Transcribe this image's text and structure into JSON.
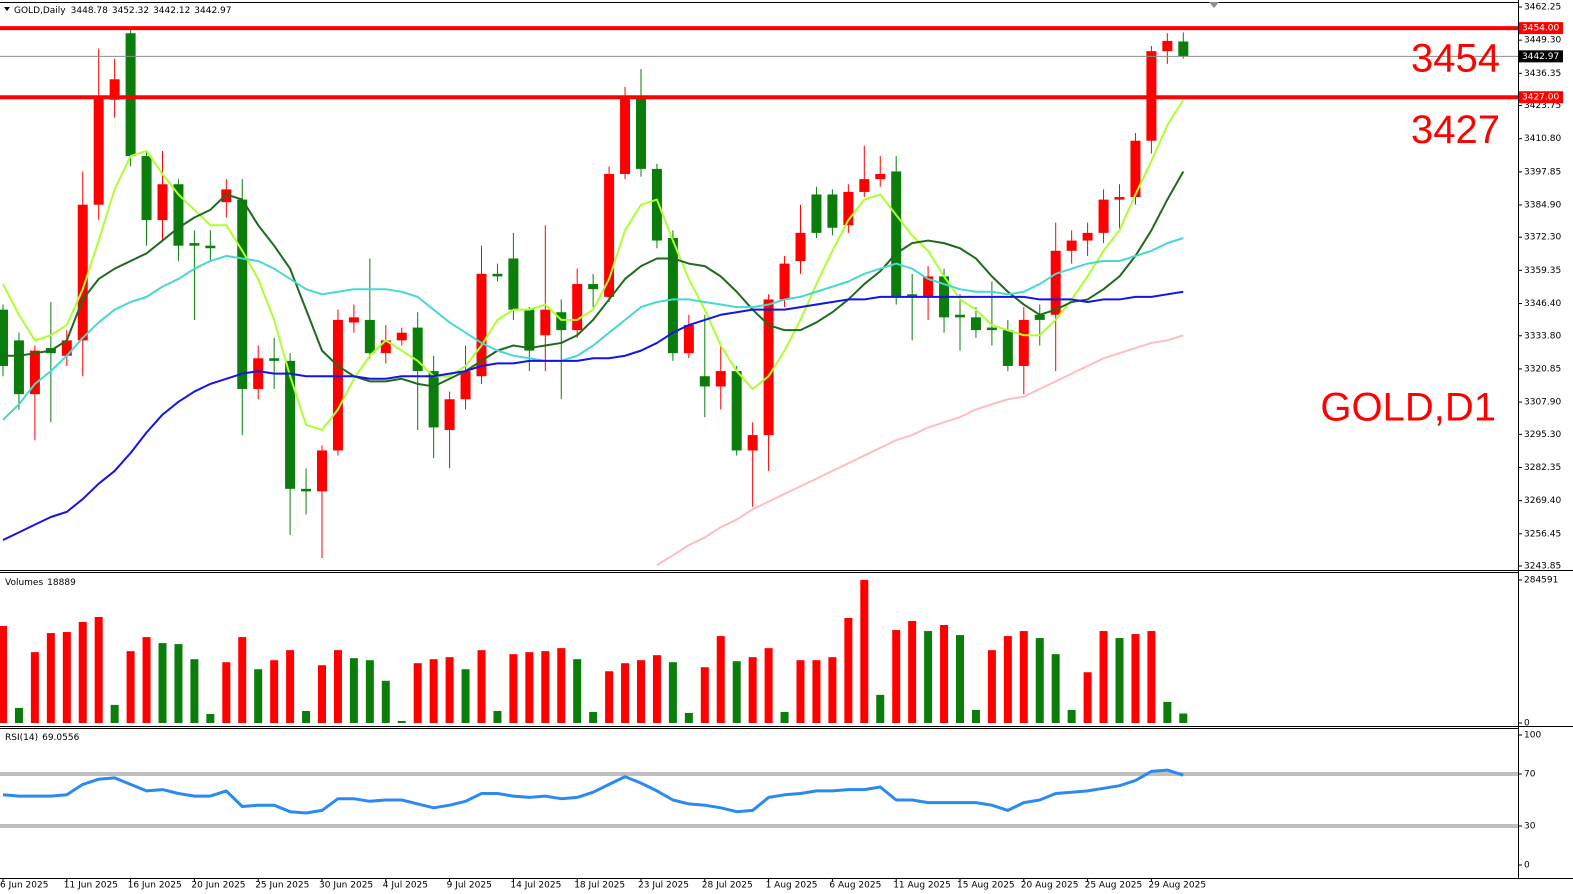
{
  "chart_data": [
    {
      "type": "candlestick",
      "title": "GOLD,Daily",
      "annotation": "GOLD,D1",
      "categories": [
        "6 Jun 2025",
        null,
        null,
        null,
        "11 Jun 2025",
        null,
        null,
        null,
        "16 Jun 2025",
        null,
        null,
        null,
        "20 Jun 2025",
        null,
        null,
        null,
        "25 Jun 2025",
        null,
        null,
        null,
        "30 Jun 2025",
        null,
        null,
        null,
        "4 Jul 2025",
        null,
        null,
        null,
        "9 Jul 2025",
        null,
        null,
        null,
        "14 Jul 2025",
        null,
        null,
        null,
        "18 Jul 2025",
        null,
        null,
        null,
        "23 Jul 2025",
        null,
        null,
        null,
        "28 Jul 2025",
        null,
        null,
        null,
        "1 Aug 2025",
        null,
        null,
        null,
        "6 Aug 2025",
        null,
        null,
        null,
        "11 Aug 2025",
        null,
        null,
        null,
        "15 Aug 2025",
        null,
        null,
        null,
        "20 Aug 2025",
        null,
        null,
        null,
        "25 Aug 2025",
        null,
        null,
        null,
        "29 Aug 2025",
        null,
        null
      ],
      "open": [
        3344,
        3332,
        3311,
        3329,
        3326,
        3332,
        3385,
        3426,
        3452,
        3404,
        3379,
        3393,
        3370,
        3369,
        3386,
        3387,
        3313,
        3325,
        3324,
        3274,
        3273,
        3289,
        3339,
        3340,
        3327,
        3332,
        3337,
        3320,
        3297,
        3309,
        3318,
        3358,
        3364,
        3344,
        3334,
        3343,
        3336,
        3354,
        3349,
        3397,
        3427,
        3399,
        3372,
        3327,
        3318,
        3314,
        3320,
        3289,
        3295,
        3348,
        3363,
        3389,
        3389,
        3377,
        3390,
        3395,
        3398,
        3350,
        3349,
        3357,
        3342,
        3341,
        3337,
        3336,
        3322,
        3342,
        3342,
        3367,
        3371,
        3374,
        3387,
        3388,
        3410,
        3445,
        3448.78
      ],
      "high": [
        3346,
        3335,
        3330,
        3347,
        3336,
        3398,
        3446,
        3442,
        3454,
        3406,
        3406,
        3395,
        3375,
        3375,
        3395,
        3395,
        3330,
        3333,
        3327,
        3282,
        3291,
        3344,
        3346,
        3364,
        3338,
        3337,
        3343,
        3326,
        3312,
        3330,
        3369,
        3362,
        3374,
        3345,
        3377,
        3348,
        3360,
        3358,
        3400,
        3431,
        3438,
        3401,
        3375,
        3342,
        3342,
        3330,
        3322,
        3300,
        3350,
        3365,
        3385,
        3392,
        3391,
        3393,
        3408,
        3404,
        3404,
        3358,
        3361,
        3360,
        3350,
        3345,
        3355,
        3340,
        3345,
        3346,
        3378,
        3375,
        3378,
        3391,
        3393,
        3413,
        3447,
        3452,
        3452.32
      ],
      "low": [
        3318,
        3305,
        3293,
        3300,
        3322,
        3318,
        3379,
        3419,
        3400,
        3369,
        3371,
        3363,
        3340,
        3363,
        3380,
        3295,
        3309,
        3313,
        3256,
        3264,
        3247,
        3287,
        3335,
        3325,
        3323,
        3330,
        3297,
        3286,
        3282,
        3305,
        3315,
        3355,
        3340,
        3320,
        3320,
        3309,
        3333,
        3345,
        3347,
        3395,
        3396,
        3368,
        3324,
        3325,
        3302,
        3305,
        3287,
        3267,
        3281,
        3345,
        3358,
        3372,
        3373,
        3374,
        3388,
        3392,
        3346,
        3332,
        3340,
        3335,
        3328,
        3333,
        3330,
        3320,
        3311,
        3330,
        3320,
        3362,
        3365,
        3370,
        3375,
        3385,
        3405,
        3440,
        3442.12
      ],
      "close": [
        3322,
        3311,
        3328,
        3327,
        3332,
        3385,
        3427,
        3434,
        3404,
        3379,
        3393,
        3369,
        3369,
        3368,
        3391,
        3313,
        3325,
        3324,
        3274,
        3273,
        3289,
        3340,
        3341,
        3327,
        3332,
        3335,
        3320,
        3298,
        3309,
        3320,
        3358,
        3357,
        3344,
        3328,
        3344,
        3336,
        3354,
        3352,
        3397,
        3427,
        3399,
        3371,
        3327,
        3338,
        3314,
        3320,
        3289,
        3295,
        3348,
        3362,
        3374,
        3374,
        3376,
        3390,
        3395,
        3397,
        3349,
        3349,
        3357,
        3341,
        3341,
        3336,
        3336,
        3322,
        3340,
        3340,
        3367,
        3371,
        3374,
        3387,
        3388,
        3410,
        3445,
        3449,
        3442.97
      ],
      "up_color": "#ff0000",
      "down_color": "#0a7d0a",
      "series": [
        {
          "color": "#adff2f",
          "values": [
            3354,
            3342,
            3332,
            3334,
            3338,
            3352,
            3371,
            3391,
            3404,
            3406,
            3397,
            3389,
            3383,
            3377,
            3377,
            3367,
            3356,
            3340,
            3318,
            3299,
            3297,
            3305,
            3317,
            3326,
            3332,
            3328,
            3324,
            3318,
            3318,
            3322,
            3330,
            3340,
            3344,
            3344,
            3346,
            3340,
            3340,
            3344,
            3356,
            3375,
            3385,
            3387,
            3371,
            3356,
            3344,
            3330,
            3320,
            3313,
            3318,
            3328,
            3340,
            3354,
            3367,
            3379,
            3387,
            3389,
            3381,
            3373,
            3367,
            3357,
            3348,
            3344,
            3338,
            3336,
            3334,
            3334,
            3340,
            3348,
            3357,
            3367,
            3375,
            3389,
            3402,
            3416,
            3426
          ]
        },
        {
          "color": "#1d6b1d",
          "values": [
            3326,
            3326,
            3327,
            3328,
            3332,
            3348,
            3356,
            3360,
            3363,
            3366,
            3371,
            3376,
            3380,
            3383,
            3389,
            3387,
            3377,
            3369,
            3360,
            3344,
            3328,
            3322,
            3318,
            3316,
            3316,
            3317,
            3315,
            3314,
            3317,
            3320,
            3324,
            3328,
            3330,
            3329,
            3330,
            3331,
            3334,
            3340,
            3348,
            3356,
            3361,
            3364,
            3364,
            3362,
            3361,
            3357,
            3351,
            3344,
            3338,
            3336,
            3336,
            3339,
            3343,
            3348,
            3354,
            3359,
            3366,
            3370,
            3371,
            3370,
            3368,
            3364,
            3357,
            3351,
            3346,
            3342,
            3344,
            3347,
            3348,
            3352,
            3357,
            3365,
            3375,
            3387,
            3398
          ]
        },
        {
          "color": "#48d8d0",
          "values": [
            3301,
            3307,
            3315,
            3320,
            3326,
            3333,
            3339,
            3344,
            3347,
            3349,
            3353,
            3356,
            3360,
            3363,
            3365,
            3364,
            3363,
            3360,
            3356,
            3352,
            3350,
            3351,
            3352,
            3352,
            3352,
            3351,
            3349,
            3344,
            3339,
            3335,
            3331,
            3328,
            3326,
            3325,
            3324,
            3324,
            3326,
            3330,
            3335,
            3340,
            3345,
            3347,
            3348,
            3348,
            3347,
            3346,
            3345,
            3345,
            3346,
            3348,
            3349,
            3351,
            3353,
            3355,
            3358,
            3360,
            3362,
            3360,
            3356,
            3354,
            3352,
            3351,
            3351,
            3350,
            3351,
            3354,
            3358,
            3360,
            3362,
            3363,
            3363,
            3365,
            3367,
            3370,
            3372
          ]
        },
        {
          "color": "#1414e6",
          "values": [
            3254,
            3257,
            3260,
            3263,
            3265,
            3270,
            3276,
            3281,
            3288,
            3296,
            3303,
            3308,
            3312,
            3315,
            3317,
            3319,
            3320,
            3319,
            3319,
            3318,
            3318,
            3318,
            3318,
            3317,
            3317,
            3318,
            3318,
            3318,
            3319,
            3320,
            3322,
            3323,
            3323,
            3324,
            3324,
            3324,
            3324,
            3325,
            3325,
            3326,
            3328,
            3331,
            3335,
            3338,
            3340,
            3342,
            3343,
            3344,
            3344,
            3344,
            3345,
            3346,
            3347,
            3348,
            3348,
            3349,
            3349,
            3349,
            3349,
            3349,
            3349,
            3349,
            3349,
            3349,
            3349,
            3348,
            3348,
            3348,
            3347,
            3348,
            3348,
            3349,
            3349,
            3350,
            3351
          ]
        },
        {
          "color": "#ffbcc4",
          "values": [
            null,
            null,
            null,
            null,
            null,
            null,
            null,
            null,
            null,
            null,
            null,
            null,
            null,
            null,
            null,
            null,
            null,
            null,
            null,
            null,
            null,
            null,
            null,
            null,
            null,
            null,
            null,
            null,
            null,
            null,
            null,
            null,
            null,
            null,
            null,
            null,
            null,
            null,
            null,
            null,
            null,
            3244.2,
            3248,
            3252,
            3255,
            3259,
            3262,
            3266,
            3269,
            3272,
            3275,
            3278,
            3281,
            3284,
            3287,
            3290,
            3293,
            3295,
            3298,
            3300,
            3302,
            3305,
            3307,
            3309,
            3310,
            3313,
            3316,
            3319,
            3322,
            3325,
            3327,
            3329,
            3331,
            3332,
            3334
          ]
        }
      ],
      "levels": [
        {
          "value": 3454,
          "label": "3454.00",
          "color": "#ff0000"
        },
        {
          "value": 3427,
          "label": "3427.00",
          "color": "#ff0000"
        }
      ],
      "ylim": [
        3243.85,
        3462.25
      ],
      "yticks": [
        {
          "value": 3462.25,
          "label": "3462.25"
        },
        {
          "value": 3449.3,
          "label": "3449.30"
        },
        {
          "value": 3436.35,
          "label": "3436.35"
        },
        {
          "value": 3423.75,
          "label": "3423.75"
        },
        {
          "value": 3410.8,
          "label": "3410.80"
        },
        {
          "value": 3397.85,
          "label": "3397.85"
        },
        {
          "value": 3384.9,
          "label": "3384.90"
        },
        {
          "value": 3372.3,
          "label": "3372.30"
        },
        {
          "value": 3359.35,
          "label": "3359.35"
        },
        {
          "value": 3346.4,
          "label": "3346.40"
        },
        {
          "value": 3333.8,
          "label": "3333.80"
        },
        {
          "value": 3320.85,
          "label": "3320.85"
        },
        {
          "value": 3307.9,
          "label": "3307.90"
        },
        {
          "value": 3295.3,
          "label": "3295.30"
        },
        {
          "value": 3282.35,
          "label": "3282.35"
        },
        {
          "value": 3269.4,
          "label": "3269.40"
        },
        {
          "value": 3256.45,
          "label": "3256.45"
        },
        {
          "value": 3243.85,
          "label": "3243.85"
        }
      ]
    },
    {
      "type": "bar",
      "name": "Volumes",
      "up_color": "#ff0000",
      "down_color": "#0a7d0a",
      "values": [
        193000,
        30000,
        141000,
        179000,
        181000,
        201000,
        211000,
        36000,
        143000,
        171000,
        159000,
        157000,
        127000,
        18000,
        121000,
        171000,
        107000,
        125000,
        145000,
        24000,
        115000,
        145000,
        129000,
        125000,
        84000,
        4000,
        119000,
        127000,
        131000,
        107000,
        145000,
        24000,
        137000,
        141000,
        143000,
        149000,
        127000,
        22000,
        103000,
        119000,
        125000,
        135000,
        121000,
        20000,
        111000,
        173000,
        123000,
        131000,
        149000,
        22000,
        125000,
        125000,
        131000,
        209000,
        284591,
        56000,
        185000,
        203000,
        183000,
        195000,
        175000,
        26000,
        145000,
        173000,
        183000,
        169000,
        137000,
        26000,
        101000,
        183000,
        169000,
        177000,
        183000,
        42000,
        18889
      ],
      "ylim": [
        0,
        284591
      ],
      "yticks": [
        0,
        284591
      ]
    },
    {
      "type": "line",
      "name": "RSI(14)",
      "color": "#2a8af0",
      "values": [
        54,
        53,
        53,
        53,
        54,
        62,
        66,
        67,
        62,
        57,
        58,
        55,
        53,
        53,
        57,
        45,
        46,
        46,
        41,
        40,
        42,
        51,
        51,
        49,
        50,
        50,
        47,
        44,
        46,
        49,
        55,
        55,
        53,
        52,
        53,
        51,
        52,
        56,
        62,
        68,
        63,
        57,
        50,
        47,
        46,
        44,
        41,
        42,
        52,
        54,
        55,
        57,
        57,
        58,
        58,
        60,
        50,
        50,
        48,
        48,
        48,
        48,
        46,
        42,
        48,
        50,
        55,
        56,
        57,
        59,
        61,
        65,
        72,
        73,
        69.0556
      ],
      "levels": [
        70,
        30
      ],
      "ylim": [
        0,
        100
      ],
      "yticks": [
        0,
        30,
        70,
        100
      ]
    }
  ]
}
